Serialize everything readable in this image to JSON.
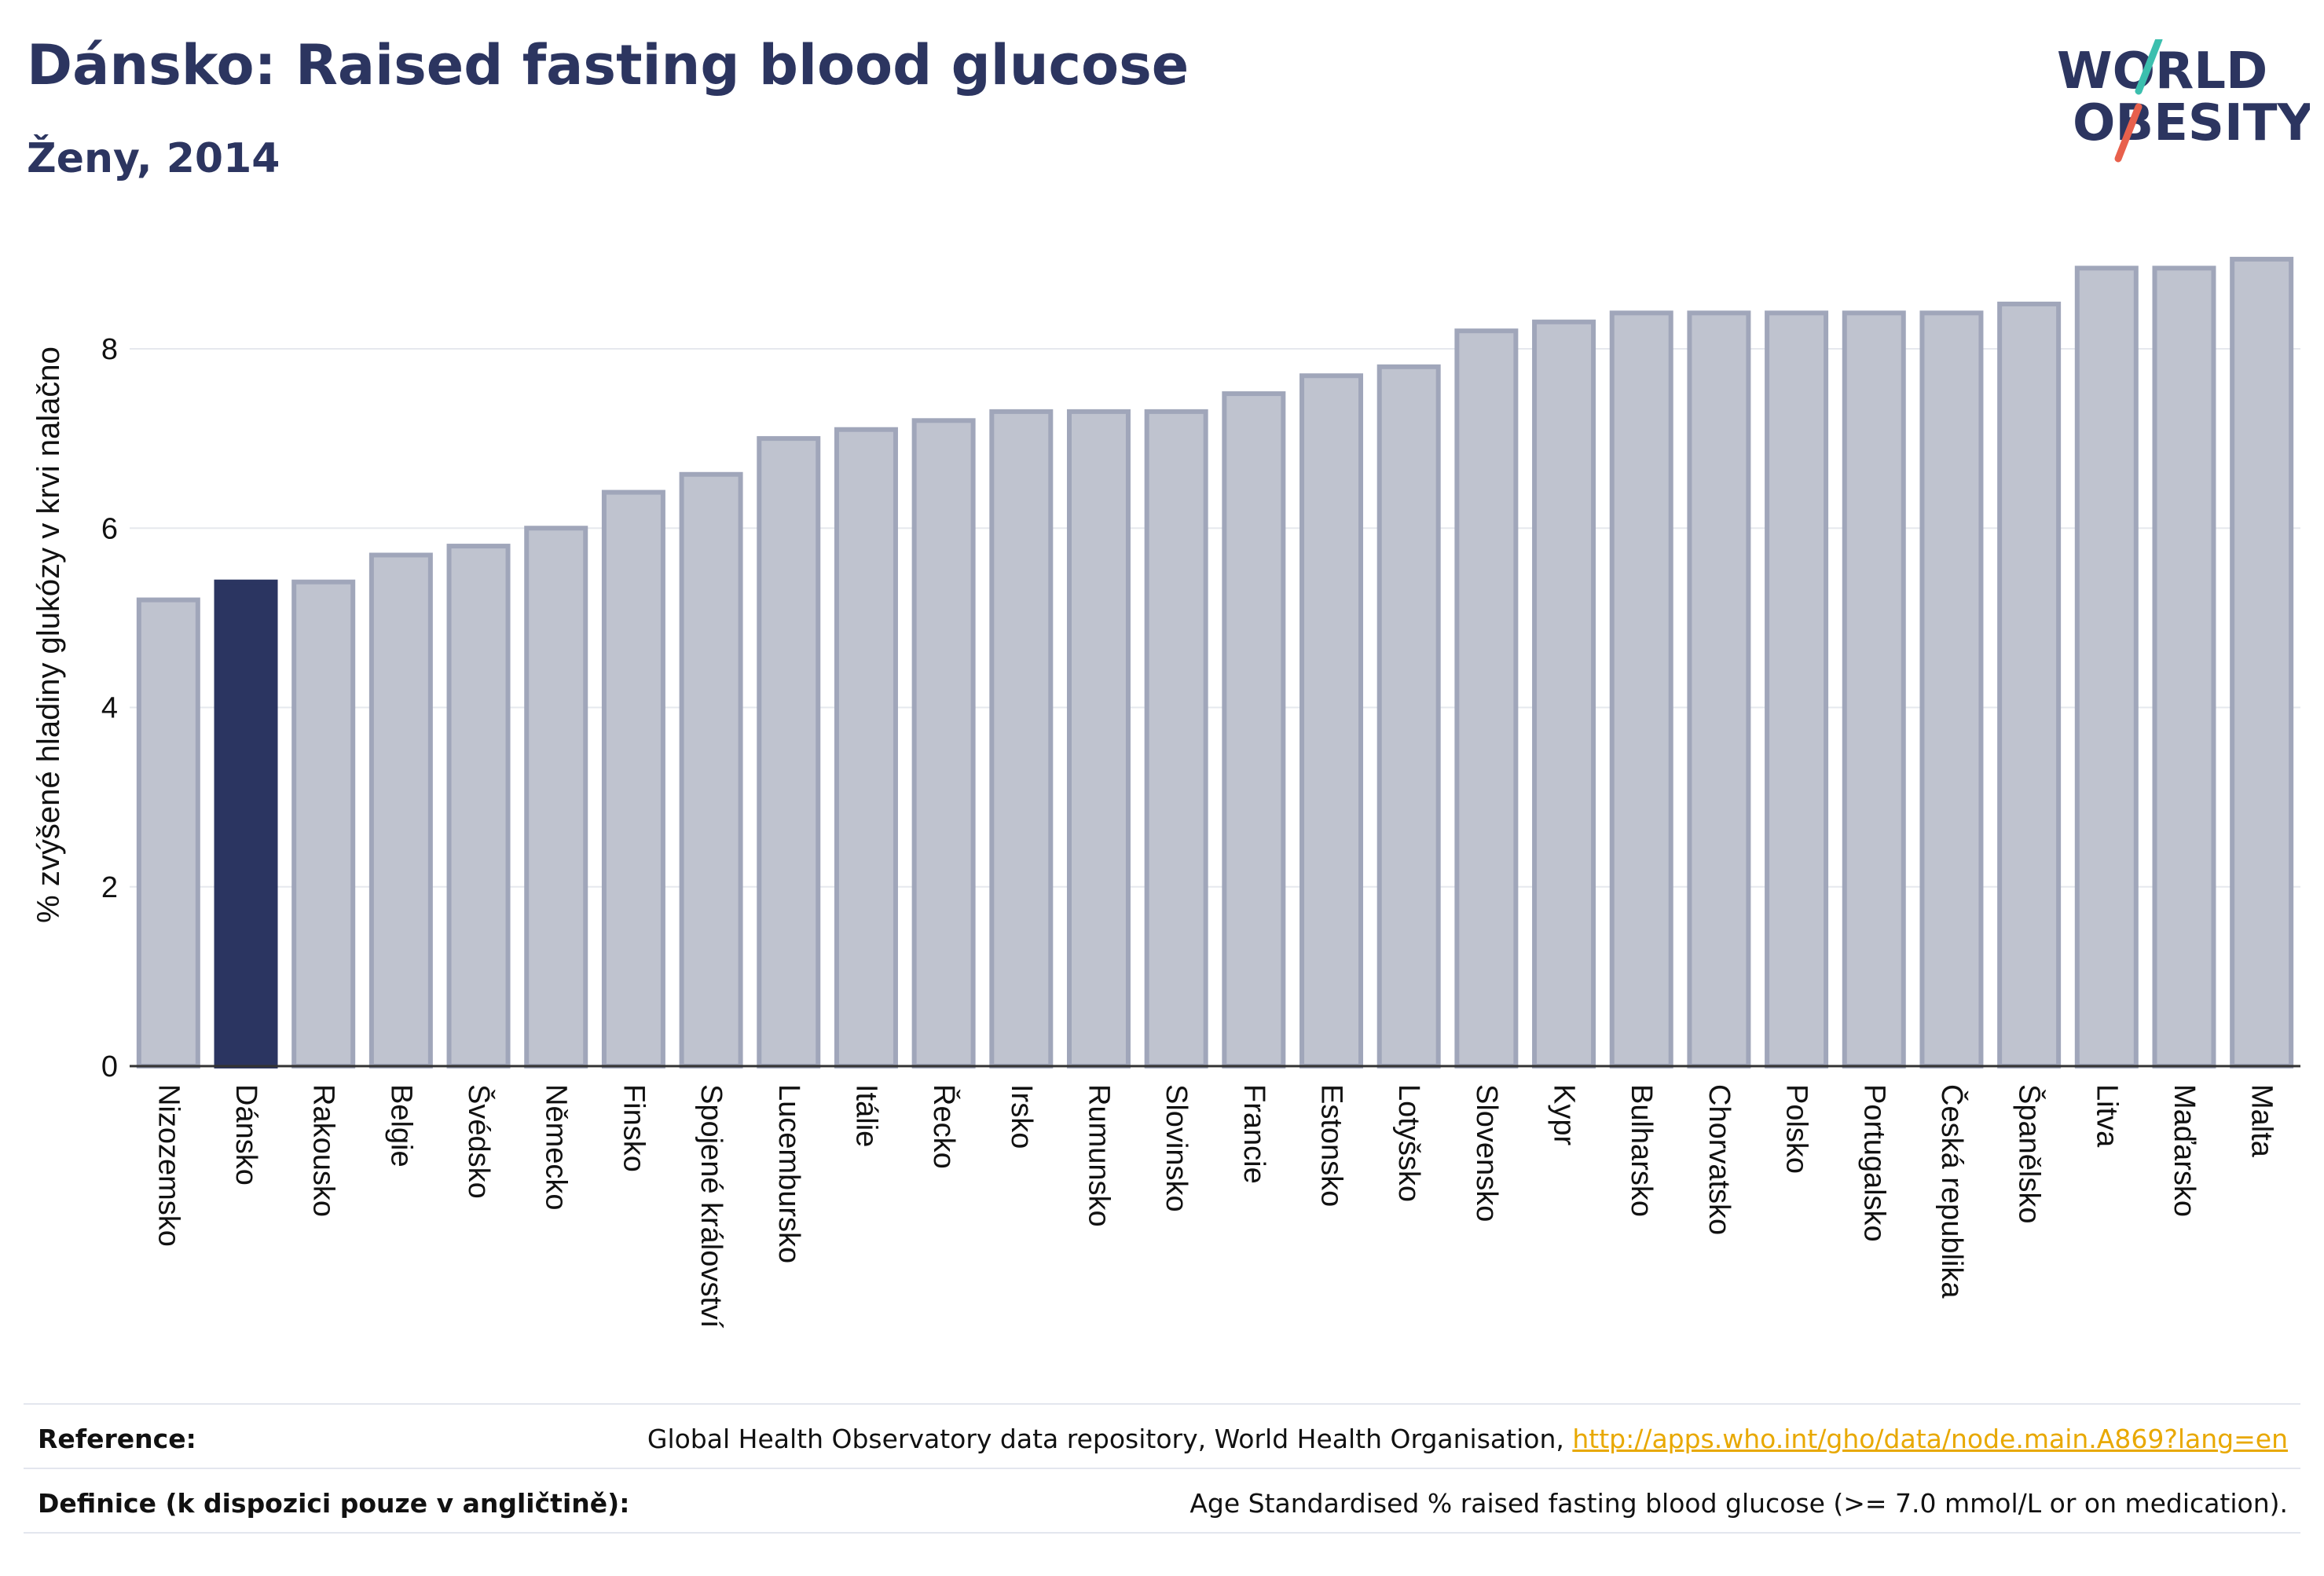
{
  "header": {
    "title": "Dánsko: Raised fasting blood glucose",
    "subtitle": "Ženy, 2014"
  },
  "logo": {
    "line1": "WORLD",
    "line2": "OBESITY"
  },
  "colors": {
    "highlight_bar": "#2b3561",
    "bar_fill": "#bfc3cf",
    "bar_stroke": "#a0a6ba",
    "text": "#2c3560",
    "link": "#e8a800",
    "logo_teal": "#3cbfae",
    "logo_red": "#e8604c"
  },
  "chart_data": {
    "type": "bar",
    "title": "Dánsko: Raised fasting blood glucose",
    "subtitle": "Ženy, 2014",
    "ylabel": "% zvýšené hladiny glukózy v krvi nalačno",
    "xlabel": "",
    "ylim": [
      0,
      9.1
    ],
    "yticks": [
      0,
      2,
      4,
      6,
      8
    ],
    "grid": true,
    "highlight": "Dánsko",
    "categories": [
      "Nizozemsko",
      "Dánsko",
      "Rakousko",
      "Belgie",
      "Švédsko",
      "Německo",
      "Finsko",
      "Spojené království",
      "Lucembursko",
      "Itálie",
      "Řecko",
      "Irsko",
      "Rumunsko",
      "Slovinsko",
      "Francie",
      "Estonsko",
      "Lotyšsko",
      "Slovensko",
      "Kypr",
      "Bulharsko",
      "Chorvatsko",
      "Polsko",
      "Portugalsko",
      "Česká republika",
      "Španělsko",
      "Litva",
      "Maďarsko",
      "Malta"
    ],
    "values": [
      5.2,
      5.4,
      5.4,
      5.7,
      5.8,
      6.0,
      6.4,
      6.6,
      7.0,
      7.1,
      7.2,
      7.3,
      7.3,
      7.3,
      7.5,
      7.7,
      7.8,
      8.2,
      8.3,
      8.4,
      8.4,
      8.4,
      8.4,
      8.4,
      8.5,
      8.9,
      8.9,
      9.0
    ]
  },
  "footer": {
    "reference_label": "Reference:",
    "reference_text": "Global Health Observatory data repository, World Health Organisation, ",
    "reference_link": "http://apps.who.int/gho/data/node.main.A869?lang=en",
    "definition_label": "Definice (k dispozici pouze v angličtině):",
    "definition_text": "Age Standardised % raised fasting blood glucose (>= 7.0 mmol/L or on medication)."
  }
}
